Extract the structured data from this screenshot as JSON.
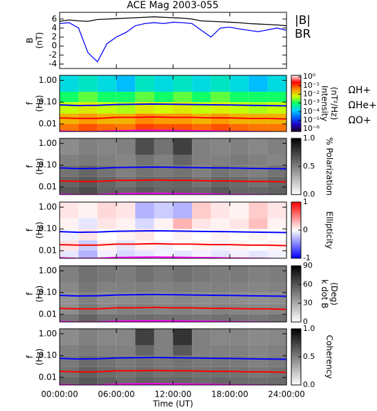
{
  "chart_data": [
    {
      "type": "line",
      "title": "ACE Mag 2003-055",
      "ylabel": [
        "B",
        "(nT)"
      ],
      "x": [
        0,
        1,
        2,
        3,
        4,
        5,
        6,
        7,
        8,
        9,
        10,
        11,
        12,
        13,
        14,
        15,
        16,
        17,
        18,
        19,
        20,
        21,
        22,
        23,
        24
      ],
      "xlim": [
        0,
        24
      ],
      "ylim": [
        -5,
        7.5
      ],
      "yticks": [
        6,
        4,
        2,
        0,
        -2,
        -4
      ],
      "series": [
        {
          "name": "|B|",
          "color": "#000000",
          "values": [
            5.5,
            5.8,
            5.6,
            5.5,
            5.9,
            6.0,
            6.1,
            6.2,
            6.3,
            6.4,
            6.5,
            6.4,
            6.3,
            6.2,
            6.0,
            5.6,
            5.5,
            5.4,
            5.3,
            5.2,
            5.0,
            4.9,
            4.8,
            4.7,
            4.5
          ]
        },
        {
          "name": "BR",
          "color": "#0000ff",
          "values": [
            5.0,
            5.2,
            4.0,
            -1.5,
            -3.5,
            0.5,
            2.0,
            3.0,
            4.5,
            5.0,
            5.2,
            5.0,
            5.3,
            5.2,
            5.0,
            3.5,
            2.0,
            4.0,
            4.2,
            3.8,
            3.5,
            3.2,
            3.6,
            4.0,
            3.5
          ]
        }
      ]
    },
    {
      "type": "heatmap",
      "ylabel": [
        "f",
        "(Hz)"
      ],
      "log_y": true,
      "xlim": [
        0,
        24
      ],
      "ylim": [
        0.0045,
        1.7
      ],
      "yticks": [
        {
          "value": 1,
          "label": "1.00"
        },
        {
          "value": 0.1,
          "label": "0.10"
        },
        0.01
      ],
      "xbins": [
        0,
        2,
        4,
        6,
        8,
        10,
        12,
        14,
        16,
        18,
        20,
        22,
        24
      ],
      "ybins": [
        1.7,
        0.3,
        0.1,
        0.03,
        0.01,
        0.0045
      ],
      "z": [
        [
          0.0002,
          0.0003,
          0.0002,
          0.0001,
          0.0003,
          0.0002,
          0.0003,
          0.0002,
          0.0003,
          0.0002,
          0.0001,
          0.0002
        ],
        [
          0.001,
          0.002,
          0.001,
          0.001,
          0.002,
          0.001,
          0.002,
          0.001,
          0.002,
          0.001,
          0.001,
          0.001
        ],
        [
          0.005,
          0.008,
          0.005,
          0.004,
          0.008,
          0.006,
          0.008,
          0.005,
          0.007,
          0.005,
          0.004,
          0.005
        ],
        [
          0.02,
          0.03,
          0.02,
          0.02,
          0.04,
          0.03,
          0.03,
          0.02,
          0.03,
          0.02,
          0.02,
          0.02
        ],
        [
          0.05,
          0.08,
          0.06,
          0.05,
          0.1,
          0.08,
          0.08,
          0.06,
          0.08,
          0.06,
          0.05,
          0.05
        ]
      ],
      "clabel": [
        "Intensity",
        "(nT²/Hz)"
      ],
      "log_color": true,
      "clim": [
        5e-07,
        1.5
      ],
      "cticks": [
        {
          "value": 1,
          "label": "10⁰"
        },
        {
          "value": 0.1,
          "label": "10⁻¹"
        },
        {
          "value": 0.01,
          "label": "10⁻²"
        },
        {
          "value": 0.001,
          "label": "10⁻³"
        },
        {
          "value": 0.0001,
          "label": "10⁻⁴"
        },
        {
          "value": 1e-05,
          "label": "10⁻⁵"
        },
        {
          "value": 1e-06,
          "label": "10⁻⁶"
        }
      ],
      "colormap": [
        "#1a0030",
        "#2000c0",
        "#0060ff",
        "#00d0ff",
        "#00ff70",
        "#d0ff00",
        "#ff9000",
        "#ff0000",
        "#ffffff"
      ],
      "legend": "right",
      "x": [
        0,
        2,
        4,
        6,
        8,
        10,
        12,
        14,
        16,
        18,
        20,
        22,
        24
      ],
      "series": [
        {
          "name": "ΩH+",
          "color": "#0000ff",
          "values": [
            0.075,
            0.07,
            0.072,
            0.078,
            0.08,
            0.082,
            0.08,
            0.078,
            0.076,
            0.074,
            0.072,
            0.07,
            0.068
          ]
        },
        {
          "name": "ΩHe+",
          "color": "#ff0000",
          "values": [
            0.019,
            0.018,
            0.018,
            0.02,
            0.02,
            0.021,
            0.02,
            0.02,
            0.019,
            0.019,
            0.018,
            0.018,
            0.017
          ]
        },
        {
          "name": "ΩO+",
          "color": "#ff00ff",
          "values": [
            0.0047,
            0.0044,
            0.0045,
            0.0049,
            0.005,
            0.0051,
            0.005,
            0.0049,
            0.0048,
            0.0046,
            0.0045,
            0.0044,
            0.0043
          ]
        }
      ]
    },
    {
      "type": "heatmap",
      "ylabel": [
        "f",
        "(Hz)"
      ],
      "log_y": true,
      "xlim": [
        0,
        24
      ],
      "ylim": [
        0.0045,
        1.7
      ],
      "yticks": [
        {
          "value": 1,
          "label": "1.00"
        },
        {
          "value": 0.1,
          "label": "0.10"
        },
        0.01
      ],
      "xbins": [
        0,
        2,
        4,
        6,
        8,
        10,
        12,
        14,
        16,
        18,
        20,
        22,
        24
      ],
      "ybins": [
        1.7,
        0.3,
        0.1,
        0.03,
        0.01,
        0.0045
      ],
      "z": [
        [
          0.45,
          0.5,
          0.48,
          0.5,
          0.7,
          0.55,
          0.75,
          0.5,
          0.48,
          0.5,
          0.47,
          0.5
        ],
        [
          0.5,
          0.52,
          0.5,
          0.48,
          0.55,
          0.5,
          0.6,
          0.5,
          0.5,
          0.52,
          0.5,
          0.48
        ],
        [
          0.55,
          0.6,
          0.55,
          0.5,
          0.55,
          0.52,
          0.55,
          0.5,
          0.55,
          0.52,
          0.5,
          0.55
        ],
        [
          0.6,
          0.65,
          0.6,
          0.55,
          0.6,
          0.58,
          0.6,
          0.55,
          0.6,
          0.58,
          0.55,
          0.6
        ],
        [
          0.65,
          0.7,
          0.62,
          0.6,
          0.65,
          0.6,
          0.62,
          0.6,
          0.65,
          0.6,
          0.6,
          0.62
        ]
      ],
      "clabel": [
        "% Polarization"
      ],
      "clim": [
        0,
        1
      ],
      "cticks": [
        {
          "value": 1,
          "label": "1.0"
        },
        0.5,
        {
          "value": 0,
          "label": "0.0"
        }
      ],
      "colormap": [
        "#ffffff",
        "#000000"
      ],
      "x": [
        0,
        2,
        4,
        6,
        8,
        10,
        12,
        14,
        16,
        18,
        20,
        22,
        24
      ],
      "series": [
        {
          "name": "ΩH+",
          "color": "#0000ff",
          "values": [
            0.075,
            0.07,
            0.072,
            0.078,
            0.08,
            0.082,
            0.08,
            0.078,
            0.076,
            0.074,
            0.072,
            0.07,
            0.068
          ]
        },
        {
          "name": "ΩHe+",
          "color": "#ff0000",
          "values": [
            0.019,
            0.018,
            0.018,
            0.02,
            0.02,
            0.021,
            0.02,
            0.02,
            0.019,
            0.019,
            0.018,
            0.018,
            0.017
          ]
        },
        {
          "name": "ΩO+",
          "color": "#ff00ff",
          "values": [
            0.0047,
            0.0044,
            0.0045,
            0.0049,
            0.005,
            0.0051,
            0.005,
            0.0049,
            0.0048,
            0.0046,
            0.0045,
            0.0044,
            0.0043
          ]
        }
      ]
    },
    {
      "type": "heatmap",
      "ylabel": [
        "f",
        "(Hz)"
      ],
      "log_y": true,
      "xlim": [
        0,
        24
      ],
      "ylim": [
        0.0045,
        1.7
      ],
      "yticks": [
        {
          "value": 1,
          "label": "1.00"
        },
        {
          "value": 0.1,
          "label": "0.10"
        },
        0.01
      ],
      "xbins": [
        0,
        2,
        4,
        6,
        8,
        10,
        12,
        14,
        16,
        18,
        20,
        22,
        24
      ],
      "ybins": [
        1.7,
        0.3,
        0.1,
        0.03,
        0.01,
        0.0045
      ],
      "z": [
        [
          0.1,
          0.05,
          0.15,
          0.1,
          -0.3,
          -0.2,
          -0.3,
          0.2,
          0.1,
          0.05,
          0.2,
          0.1
        ],
        [
          0.05,
          -0.1,
          0.1,
          0.05,
          -0.15,
          0.05,
          0.3,
          0.1,
          0.05,
          0.1,
          0.25,
          0.05
        ],
        [
          -0.05,
          0.1,
          0,
          0.05,
          0.1,
          0,
          0.05,
          0,
          0.05,
          0,
          0.05,
          0
        ],
        [
          0.1,
          -0.2,
          0.05,
          -0.1,
          0.05,
          -0.05,
          0,
          0.05,
          -0.05,
          0.05,
          0,
          0.05
        ],
        [
          -0.1,
          -0.3,
          -0.05,
          -0.15,
          -0.1,
          -0.05,
          -0.1,
          -0.05,
          -0.1,
          -0.05,
          -0.1,
          -0.05
        ]
      ],
      "clabel": [
        "Ellipticity"
      ],
      "clim": [
        -1,
        1
      ],
      "cticks": [
        1,
        0,
        -1
      ],
      "colormap": [
        "#0000ff",
        "#ffffff",
        "#ff0000"
      ],
      "x": [
        0,
        2,
        4,
        6,
        8,
        10,
        12,
        14,
        16,
        18,
        20,
        22,
        24
      ],
      "series": [
        {
          "name": "ΩH+",
          "color": "#0000ff",
          "values": [
            0.075,
            0.07,
            0.072,
            0.078,
            0.08,
            0.082,
            0.08,
            0.078,
            0.076,
            0.074,
            0.072,
            0.07,
            0.068
          ]
        },
        {
          "name": "ΩHe+",
          "color": "#ff0000",
          "values": [
            0.019,
            0.018,
            0.018,
            0.02,
            0.02,
            0.021,
            0.02,
            0.02,
            0.019,
            0.019,
            0.018,
            0.018,
            0.017
          ]
        },
        {
          "name": "ΩO+",
          "color": "#ff00ff",
          "values": [
            0.0047,
            0.0044,
            0.0045,
            0.0049,
            0.005,
            0.0051,
            0.005,
            0.0049,
            0.0048,
            0.0046,
            0.0045,
            0.0044,
            0.0043
          ]
        }
      ]
    },
    {
      "type": "heatmap",
      "ylabel": [
        "f",
        "(Hz)"
      ],
      "log_y": true,
      "xlim": [
        0,
        24
      ],
      "ylim": [
        0.0045,
        1.7
      ],
      "yticks": [
        {
          "value": 1,
          "label": "1.00"
        },
        {
          "value": 0.1,
          "label": "0.10"
        },
        0.01
      ],
      "xbins": [
        0,
        2,
        4,
        6,
        8,
        10,
        12,
        14,
        16,
        18,
        20,
        22,
        24
      ],
      "ybins": [
        1.7,
        0.3,
        0.1,
        0.03,
        0.01,
        0.0045
      ],
      "z": [
        [
          45,
          50,
          48,
          46,
          50,
          47,
          50,
          48,
          46,
          47,
          45,
          46
        ],
        [
          42,
          48,
          44,
          45,
          46,
          44,
          46,
          44,
          45,
          44,
          43,
          44
        ],
        [
          38,
          45,
          40,
          40,
          42,
          40,
          42,
          40,
          41,
          40,
          39,
          40
        ],
        [
          40,
          48,
          42,
          44,
          45,
          43,
          44,
          42,
          44,
          43,
          42,
          43
        ],
        [
          48,
          55,
          50,
          50,
          52,
          50,
          50,
          49,
          50,
          49,
          48,
          50
        ]
      ],
      "clabel": [
        "k dot B",
        "(Deg)"
      ],
      "clim": [
        0,
        90
      ],
      "cticks": [
        90,
        60,
        30,
        0
      ],
      "colormap": [
        "#ffffff",
        "#000000"
      ],
      "x": [
        0,
        2,
        4,
        6,
        8,
        10,
        12,
        14,
        16,
        18,
        20,
        22,
        24
      ],
      "series": [
        {
          "name": "ΩH+",
          "color": "#0000ff",
          "values": [
            0.075,
            0.07,
            0.072,
            0.078,
            0.08,
            0.082,
            0.08,
            0.078,
            0.076,
            0.074,
            0.072,
            0.07,
            0.068
          ]
        },
        {
          "name": "ΩHe+",
          "color": "#ff0000",
          "values": [
            0.019,
            0.018,
            0.018,
            0.02,
            0.02,
            0.021,
            0.02,
            0.02,
            0.019,
            0.019,
            0.018,
            0.018,
            0.017
          ]
        },
        {
          "name": "ΩO+",
          "color": "#ff00ff",
          "values": [
            0.0047,
            0.0044,
            0.0045,
            0.0049,
            0.005,
            0.0051,
            0.005,
            0.0049,
            0.0048,
            0.0046,
            0.0045,
            0.0044,
            0.0043
          ]
        }
      ]
    },
    {
      "type": "heatmap",
      "ylabel": [
        "f",
        "(Hz)"
      ],
      "log_y": true,
      "xlim": [
        0,
        24
      ],
      "ylim": [
        0.0045,
        1.7
      ],
      "yticks": [
        {
          "value": 1,
          "label": "1.00"
        },
        {
          "value": 0.1,
          "label": "0.10"
        },
        0.01
      ],
      "xbins": [
        0,
        2,
        4,
        6,
        8,
        10,
        12,
        14,
        16,
        18,
        20,
        22,
        24
      ],
      "ybins": [
        1.7,
        0.3,
        0.1,
        0.03,
        0.01,
        0.0045
      ],
      "z": [
        [
          0.45,
          0.5,
          0.47,
          0.48,
          0.75,
          0.5,
          0.8,
          0.5,
          0.47,
          0.48,
          0.46,
          0.47
        ],
        [
          0.5,
          0.52,
          0.5,
          0.5,
          0.6,
          0.5,
          0.65,
          0.5,
          0.5,
          0.5,
          0.48,
          0.5
        ],
        [
          0.52,
          0.58,
          0.55,
          0.52,
          0.55,
          0.52,
          0.55,
          0.52,
          0.53,
          0.52,
          0.5,
          0.52
        ],
        [
          0.55,
          0.62,
          0.58,
          0.55,
          0.58,
          0.55,
          0.57,
          0.55,
          0.56,
          0.55,
          0.53,
          0.55
        ],
        [
          0.6,
          0.66,
          0.62,
          0.58,
          0.62,
          0.6,
          0.6,
          0.58,
          0.6,
          0.58,
          0.57,
          0.58
        ]
      ],
      "clabel": [
        "Coherency"
      ],
      "clim": [
        0,
        1
      ],
      "cticks": [
        {
          "value": 1,
          "label": "1.0"
        },
        0.5,
        {
          "value": 0,
          "label": "0.0"
        }
      ],
      "colormap": [
        "#ffffff",
        "#000000"
      ],
      "x": [
        0,
        2,
        4,
        6,
        8,
        10,
        12,
        14,
        16,
        18,
        20,
        22,
        24
      ],
      "series": [
        {
          "name": "ΩH+",
          "color": "#0000ff",
          "values": [
            0.075,
            0.07,
            0.072,
            0.078,
            0.08,
            0.082,
            0.08,
            0.078,
            0.076,
            0.074,
            0.072,
            0.07,
            0.068
          ]
        },
        {
          "name": "ΩHe+",
          "color": "#ff0000",
          "values": [
            0.019,
            0.018,
            0.018,
            0.02,
            0.02,
            0.021,
            0.02,
            0.02,
            0.019,
            0.019,
            0.018,
            0.018,
            0.017
          ]
        },
        {
          "name": "ΩO+",
          "color": "#ff00ff",
          "values": [
            0.0047,
            0.0044,
            0.0045,
            0.0049,
            0.005,
            0.0051,
            0.005,
            0.0049,
            0.0048,
            0.0046,
            0.0045,
            0.0044,
            0.0043
          ]
        }
      ],
      "xlabel": "Time (UT)",
      "xticks": [
        {
          "value": 0,
          "label": "00:00:00"
        },
        {
          "value": 6,
          "label": "06:00:00"
        },
        {
          "value": 12,
          "label": "12:00:00"
        },
        {
          "value": 18,
          "label": "18:00:00"
        },
        {
          "value": 24,
          "label": "24:00:00"
        }
      ]
    }
  ]
}
